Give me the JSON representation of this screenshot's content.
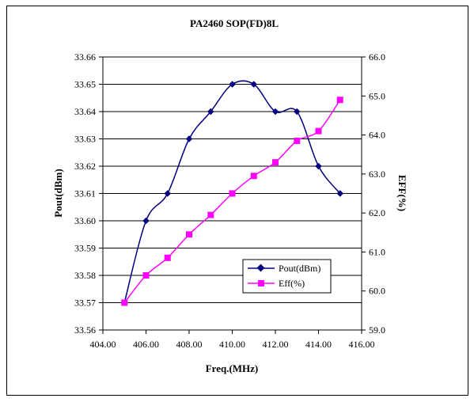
{
  "chart_data": {
    "type": "line",
    "title": "PA2460 SOP(FD)8L",
    "xlabel": "Freq.(MHz)",
    "ylabel": "Pout(dBm)",
    "y2label": "EFF(%)",
    "xlim": [
      404,
      416
    ],
    "ylim": [
      33.56,
      33.66
    ],
    "y2lim": [
      59,
      66
    ],
    "x_ticks": [
      "404.00",
      "406.00",
      "408.00",
      "410.00",
      "412.00",
      "414.00",
      "416.00"
    ],
    "y_ticks": [
      "33.66",
      "33.65",
      "33.64",
      "33.63",
      "33.62",
      "33.61",
      "33.60",
      "33.59",
      "33.58",
      "33.57",
      "33.56"
    ],
    "y2_ticks": [
      "66.0",
      "65.0",
      "64.0",
      "63.0",
      "62.0",
      "61.0",
      "60.0",
      "59.0"
    ],
    "grid": "horizontal",
    "legend_position": "lower-right inside plot",
    "series": [
      {
        "name": "Pout(dBm)",
        "axis": "left",
        "color": "#000080",
        "marker": "diamond",
        "x": [
          405,
          406,
          407,
          408,
          409,
          410,
          411,
          412,
          413,
          414,
          415
        ],
        "values": [
          33.57,
          33.6,
          33.61,
          33.63,
          33.64,
          33.65,
          33.65,
          33.64,
          33.64,
          33.62,
          33.61
        ]
      },
      {
        "name": "Eff(%)",
        "axis": "right",
        "color": "#ff00ff",
        "marker": "square",
        "x": [
          405,
          406,
          407,
          408,
          409,
          410,
          411,
          412,
          413,
          414,
          415
        ],
        "values": [
          59.7,
          60.4,
          60.85,
          61.45,
          61.95,
          62.5,
          62.95,
          63.3,
          63.85,
          64.1,
          64.9
        ]
      }
    ]
  }
}
